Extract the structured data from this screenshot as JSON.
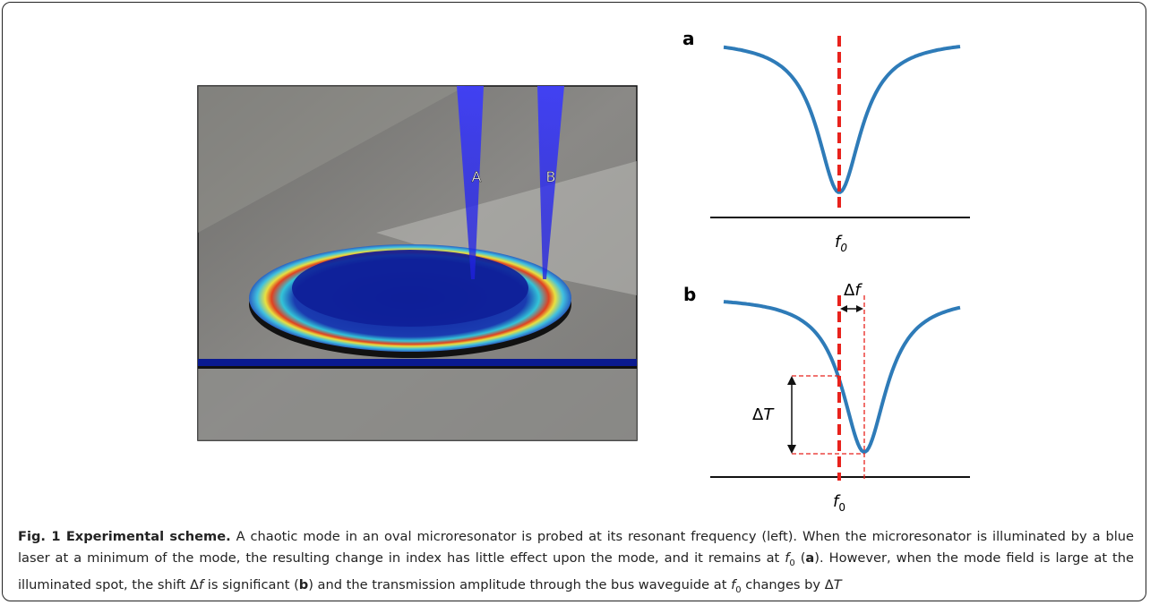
{
  "figure": {
    "image": {
      "beam_labels": [
        "A",
        "B"
      ]
    },
    "panel_a": {
      "label": "a",
      "axis_symbol": "f",
      "axis_subscript": "0"
    },
    "panel_b": {
      "label": "b",
      "axis_symbol": "f",
      "axis_subscript": "0",
      "shift_delta": "Δ",
      "shift_symbol": "f",
      "depth_delta": "Δ",
      "depth_symbol": "T"
    },
    "caption": {
      "title": "Fig. 1 Experimental scheme.",
      "parts": [
        " A chaotic mode in an oval microresonator is probed at its resonant frequency (left). When the microresonator is illuminated by a blue laser at a minimum of the mode, the resulting change in index has little effect upon the mode, and it remains at ",
        "f",
        "0",
        " (",
        "a",
        "). However, when the mode field is large at the illuminated spot, the shift ",
        "Δ",
        "f",
        " is significant (",
        "b",
        ") and the transmission amplitude through the bus waveguide at ",
        "f",
        "0",
        " changes by ",
        "Δ",
        "T"
      ]
    }
  }
}
